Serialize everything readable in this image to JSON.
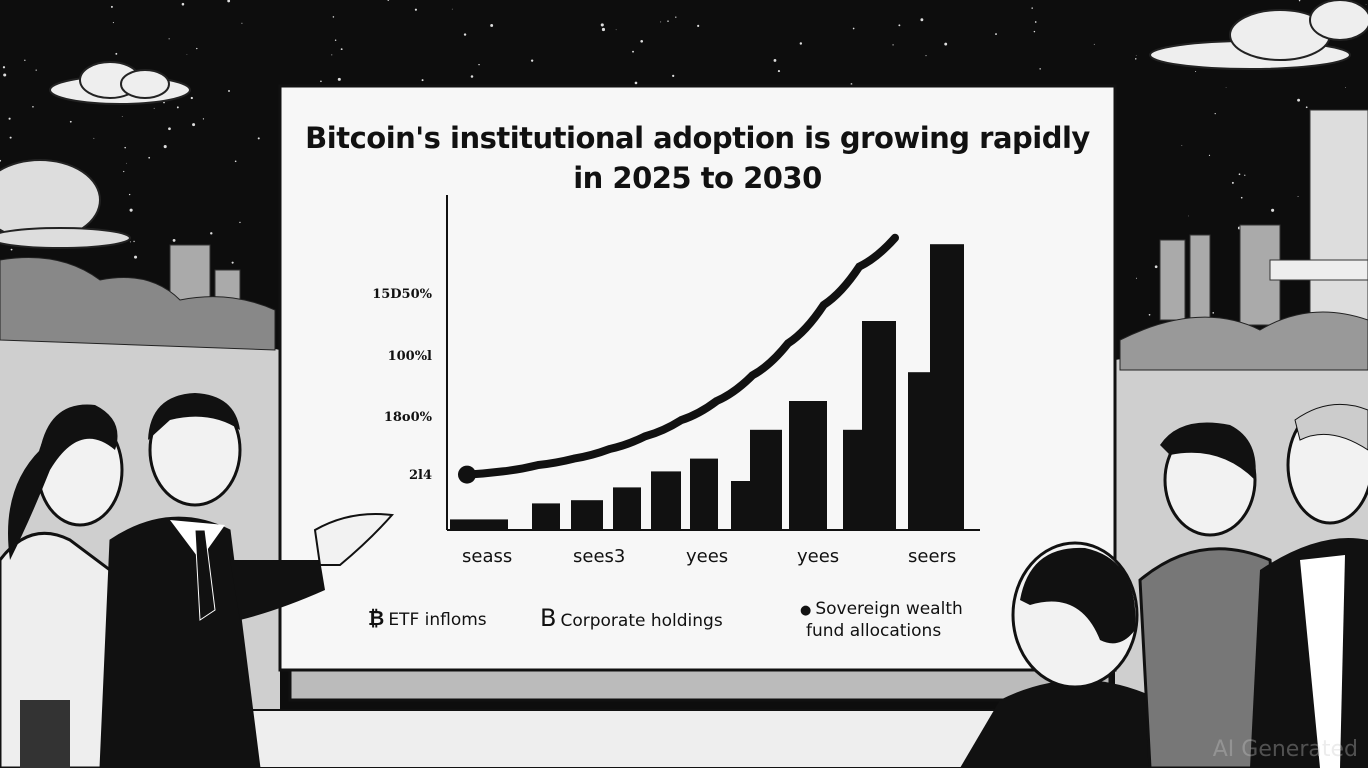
{
  "slide": {
    "title_line1": "Bitcoin's institutional adoption is growing rapidly",
    "title_line2": "in 2025 to 2030"
  },
  "chart_data": {
    "type": "bar",
    "title": "Bitcoin's institutional adoption is growing rapidly in 2025 to 2030",
    "y_tick_labels": [
      "15D50%",
      "100%l",
      "18o0%",
      "2l4"
    ],
    "x_tick_labels": [
      "seass",
      "sees3",
      "yees",
      "yees",
      "seers"
    ],
    "value_unit": "percent of plot height (axis labels illegible)",
    "bars": [
      3,
      3,
      8,
      9,
      13,
      18,
      22,
      15,
      31,
      40,
      31,
      65,
      49,
      89
    ],
    "trend_line": [
      17,
      18,
      20,
      22,
      25,
      29,
      34,
      40,
      48,
      58,
      70,
      82,
      91
    ],
    "grid": false,
    "legend_position": "bottom",
    "legend": [
      "ETF infloms",
      "Corporate holdings",
      "Sovereign wealth fund allocations"
    ]
  },
  "legend": {
    "etf": {
      "icon": "bitcoin-icon",
      "glyph": "₿",
      "label": "ETF infloms"
    },
    "corporate": {
      "icon": "b-letter-icon",
      "glyph": "B",
      "label": "Corporate holdings"
    },
    "sovereign": {
      "icon": "coin-icon",
      "glyph": "●",
      "label_line1": "Sovereign wealth",
      "label_line2": "fund allocations"
    }
  },
  "watermark": "AI Generated",
  "colors": {
    "ink": "#111111",
    "paper": "#f7f7f7",
    "sky": "#0d0d0d"
  }
}
